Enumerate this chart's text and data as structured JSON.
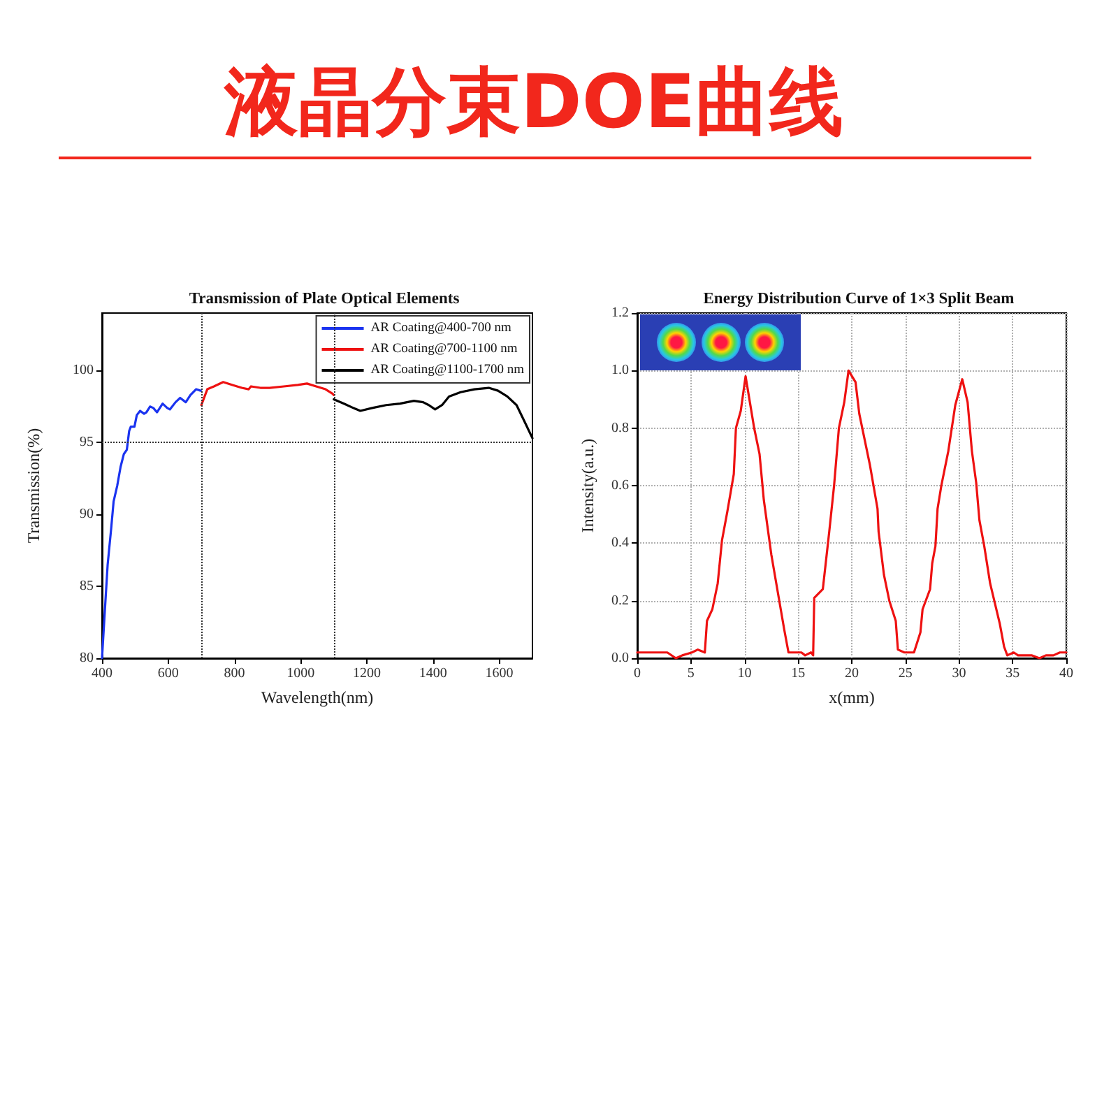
{
  "chart_data": [
    {
      "type": "other",
      "title": "液晶分束DOE曲线"
    },
    {
      "type": "line",
      "title": "Transmission of Plate Optical Elements",
      "xlabel": "Wavelength(nm)",
      "ylabel": "Transmission(%)",
      "xlim": [
        400,
        1700
      ],
      "xticks": [
        400,
        600,
        800,
        1000,
        1200,
        1400,
        1600
      ],
      "ylim": [
        80,
        104
      ],
      "yticks": [
        80,
        85,
        90,
        95,
        100
      ],
      "legend": "top right",
      "ref_lines": [
        {
          "axis": "x",
          "value": 700,
          "color": "#333333",
          "line_style": "dotted"
        },
        {
          "axis": "x",
          "value": 1100,
          "color": "#333333",
          "line_style": "dotted"
        },
        {
          "axis": "y",
          "value": 95,
          "color": "#333333",
          "line_style": "dotted"
        }
      ],
      "series": [
        {
          "name": "AR Coating@400-700 nm",
          "color": "#1a33f0",
          "x": [
            400,
            407,
            417,
            428,
            435,
            446,
            456,
            466,
            475,
            482,
            487,
            498,
            505,
            515,
            527,
            534,
            545,
            555,
            566,
            583,
            597,
            605,
            622,
            636,
            653,
            667,
            684,
            698
          ],
          "values": [
            80,
            82.7,
            86.5,
            89.1,
            90.9,
            92.0,
            93.3,
            94.2,
            94.5,
            95.8,
            96.1,
            96.1,
            96.9,
            97.2,
            97.0,
            97.1,
            97.5,
            97.4,
            97.1,
            97.7,
            97.4,
            97.3,
            97.8,
            98.1,
            97.8,
            98.3,
            98.7,
            98.6
          ]
        },
        {
          "name": "AR Coating@700-1100 nm",
          "color": "#ee1111",
          "x": [
            700,
            718,
            738,
            766,
            794,
            822,
            843,
            850,
            878,
            906,
            949,
            991,
            1019,
            1047,
            1075,
            1096,
            1100
          ],
          "values": [
            97.6,
            98.7,
            98.9,
            99.2,
            99.0,
            98.8,
            98.7,
            98.9,
            98.8,
            98.8,
            98.9,
            99.0,
            99.1,
            98.9,
            98.7,
            98.4,
            98.3
          ]
        },
        {
          "name": "AR Coating@1100-1700 nm",
          "color": "#000000",
          "x": [
            1100,
            1131,
            1159,
            1180,
            1216,
            1258,
            1300,
            1342,
            1370,
            1387,
            1406,
            1427,
            1448,
            1483,
            1525,
            1568,
            1596,
            1624,
            1652,
            1673,
            1700
          ],
          "values": [
            98.0,
            97.7,
            97.4,
            97.2,
            97.4,
            97.6,
            97.7,
            97.9,
            97.8,
            97.6,
            97.3,
            97.6,
            98.2,
            98.5,
            98.7,
            98.8,
            98.6,
            98.2,
            97.6,
            96.6,
            95.3
          ]
        }
      ]
    },
    {
      "type": "line",
      "title": "Energy Distribution Curve of 1×3 Split Beam",
      "xlabel": "x(mm)",
      "ylabel": "Intensity(a.u.)",
      "xlim": [
        0,
        40
      ],
      "xticks": [
        0,
        5,
        10,
        15,
        20,
        25,
        30,
        35,
        40
      ],
      "ylim": [
        0,
        1.2
      ],
      "yticks": [
        {
          "value": 0,
          "label": "0.0"
        },
        {
          "value": 0.2,
          "label": "0.2"
        },
        {
          "value": 0.4,
          "label": "0.4"
        },
        {
          "value": 0.6,
          "label": "0.6"
        },
        {
          "value": 0.8,
          "label": "0.8"
        },
        {
          "value": 1,
          "label": "1.0"
        },
        {
          "value": 1.2,
          "label": "1.2"
        }
      ],
      "grid": true,
      "series": [
        {
          "color": "#ee1111",
          "x": [
            0,
            0.96,
            1.8,
            2.8,
            3.6,
            4.2,
            5.1,
            5.65,
            6.3,
            6.5,
            7.0,
            7.5,
            7.9,
            8.4,
            9.0,
            9.2,
            9.65,
            10.1,
            10.5,
            10.9,
            11.4,
            11.8,
            12.5,
            13.1,
            13.7,
            14.1,
            14.65,
            15.3,
            15.65,
            16.2,
            16.4,
            16.5,
            17.3,
            17.9,
            18.35,
            18.8,
            19.3,
            19.7,
            20.35,
            20.7,
            21.2,
            21.7,
            22.4,
            22.5,
            23.0,
            23.5,
            24.1,
            24.3,
            24.9,
            25.8,
            26.4,
            26.6,
            27.3,
            27.5,
            27.8,
            28.0,
            28.35,
            29.0,
            29.65,
            30.3,
            30.8,
            31.2,
            31.6,
            31.9,
            32.35,
            32.9,
            33.8,
            34.2,
            34.5,
            35.1,
            35.5,
            36.2,
            36.8,
            37.5,
            38.1,
            38.8,
            39.4,
            40
          ],
          "values": [
            0.02,
            0.02,
            0.02,
            0.02,
            0.0,
            0.01,
            0.02,
            0.03,
            0.02,
            0.13,
            0.17,
            0.26,
            0.41,
            0.51,
            0.64,
            0.8,
            0.86,
            0.98,
            0.89,
            0.8,
            0.71,
            0.55,
            0.36,
            0.23,
            0.1,
            0.02,
            0.02,
            0.02,
            0.01,
            0.02,
            0.01,
            0.21,
            0.24,
            0.44,
            0.6,
            0.8,
            0.89,
            1.0,
            0.96,
            0.85,
            0.76,
            0.67,
            0.52,
            0.44,
            0.29,
            0.2,
            0.13,
            0.03,
            0.02,
            0.02,
            0.09,
            0.17,
            0.24,
            0.33,
            0.39,
            0.52,
            0.6,
            0.72,
            0.88,
            0.97,
            0.89,
            0.72,
            0.61,
            0.48,
            0.39,
            0.26,
            0.12,
            0.04,
            0.01,
            0.02,
            0.01,
            0.01,
            0.01,
            0.0,
            0.01,
            0.01,
            0.02,
            0.02
          ]
        }
      ]
    }
  ]
}
